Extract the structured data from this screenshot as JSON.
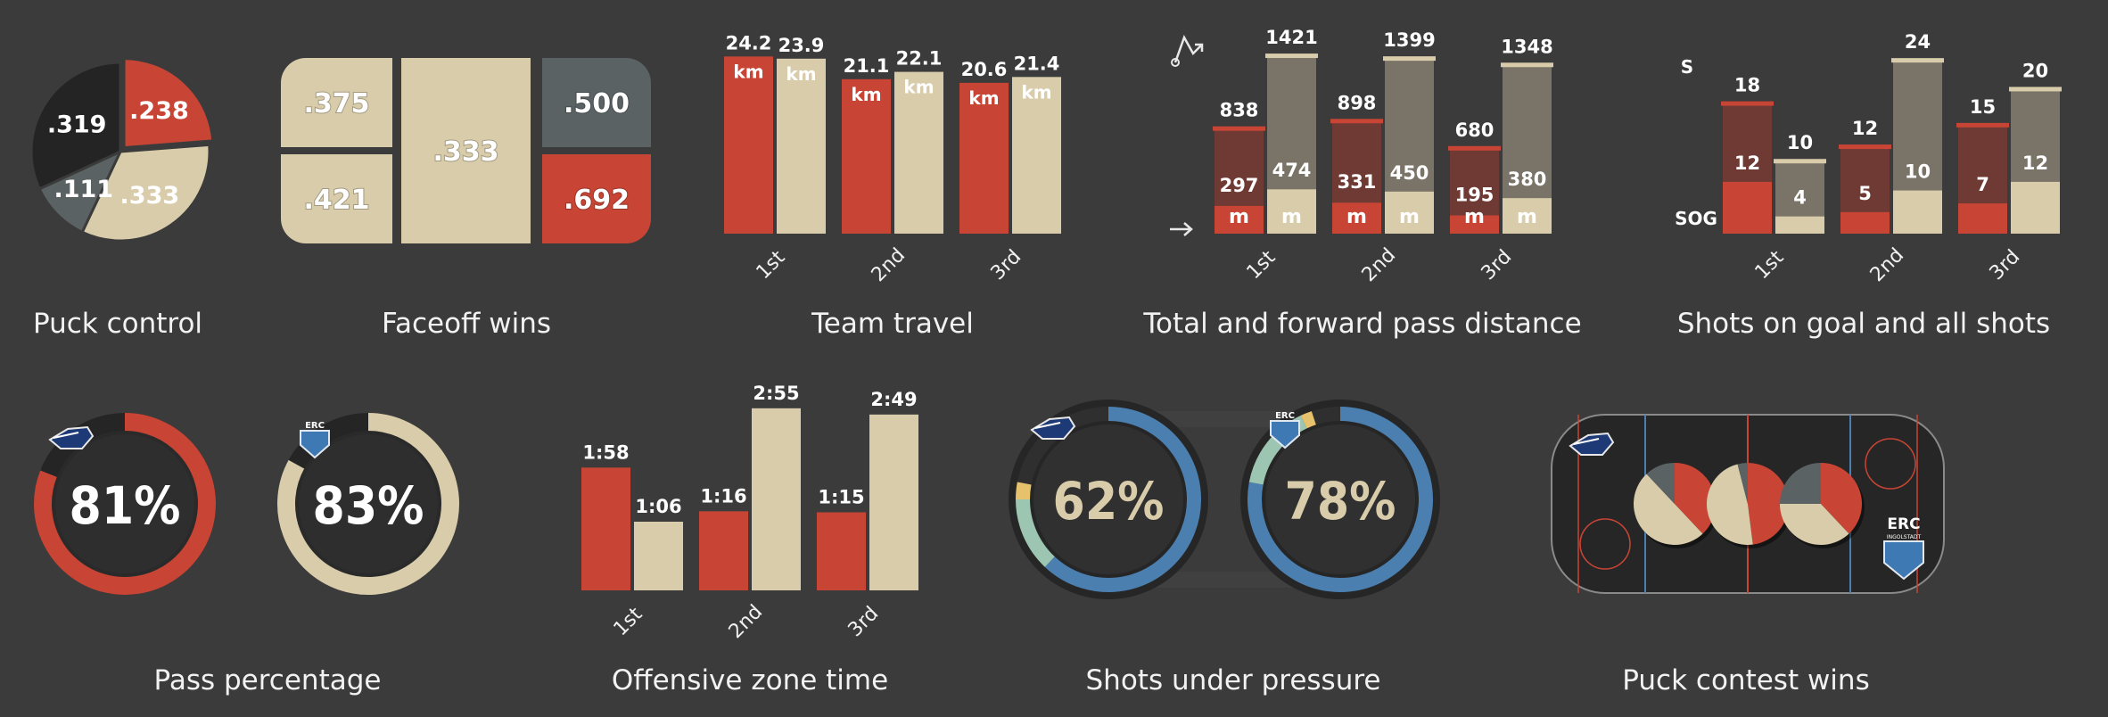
{
  "colors": {
    "red": "#c84535",
    "dark_red": "#6e3a33",
    "cream": "#d8ccaa",
    "dark": "#242424",
    "slate": "#5b6264",
    "taupe": "#7a7367",
    "blue": "#4a7fb0",
    "teal": "#9cc6b2",
    "yellow": "#e7c26d",
    "bg": "#3b3b3b"
  },
  "captions": {
    "puck_control": "Puck control",
    "faceoff": "Faceoff wins",
    "travel": "Team travel",
    "pass_distance": "Total and forward pass distance",
    "shots": "Shots on goal and all shots",
    "pass_pct": "Pass percentage",
    "ozone": "Offensive zone time",
    "pressure": "Shots under pressure",
    "contest": "Puck contest wins"
  },
  "chart_data": [
    {
      "id": "puck_control",
      "type": "pie",
      "slices": [
        {
          "label": ".238",
          "value": 0.238,
          "color": "red"
        },
        {
          "label": ".333",
          "value": 0.333,
          "color": "cream"
        },
        {
          "label": ".111",
          "value": 0.111,
          "color": "slate"
        },
        {
          "label": ".319",
          "value": 0.319,
          "color": "dark"
        }
      ]
    },
    {
      "id": "faceoff",
      "type": "treemap",
      "cells": [
        {
          "label": ".375",
          "value": 0.375,
          "color": "cream"
        },
        {
          "label": ".421",
          "value": 0.421,
          "color": "cream"
        },
        {
          "label": ".333",
          "value": 0.333,
          "color": "cream"
        },
        {
          "label": ".500",
          "value": 0.5,
          "color": "slate"
        },
        {
          "label": ".692",
          "value": 0.692,
          "color": "red"
        }
      ]
    },
    {
      "id": "travel",
      "type": "bar",
      "categories": [
        "1st",
        "2nd",
        "3rd"
      ],
      "unit": "km",
      "ylim": [
        0,
        26
      ],
      "series": [
        {
          "color": "red",
          "values": [
            24.2,
            21.1,
            20.6
          ],
          "labels": [
            "24.2",
            "21.1",
            "20.6"
          ]
        },
        {
          "color": "cream",
          "values": [
            23.9,
            22.1,
            21.4
          ],
          "labels": [
            "23.9",
            "22.1",
            "21.4"
          ]
        }
      ]
    },
    {
      "id": "pass_distance",
      "type": "bar",
      "categories": [
        "1st",
        "2nd",
        "3rd"
      ],
      "unit": "m",
      "ylim": [
        0,
        1500
      ],
      "series": [
        {
          "color": "red",
          "total": [
            838,
            898,
            680
          ],
          "forward": [
            297,
            331,
            195
          ]
        },
        {
          "color": "cream",
          "total": [
            1421,
            1399,
            1348
          ],
          "forward": [
            474,
            450,
            380
          ]
        }
      ]
    },
    {
      "id": "shots",
      "type": "bar",
      "categories": [
        "1st",
        "2nd",
        "3rd"
      ],
      "ylim": [
        0,
        26
      ],
      "labels_left": [
        "S",
        "SOG"
      ],
      "series": [
        {
          "color": "red",
          "shots": [
            18,
            12,
            15
          ],
          "on_goal": [
            12,
            5,
            7
          ]
        },
        {
          "color": "cream",
          "shots": [
            10,
            24,
            20
          ],
          "on_goal": [
            4,
            10,
            12
          ]
        }
      ]
    },
    {
      "id": "pass_pct",
      "type": "donut",
      "items": [
        {
          "label": "81%",
          "value": 81,
          "color": "red",
          "team": "Wild Wings"
        },
        {
          "label": "83%",
          "value": 83,
          "color": "cream",
          "team": "ERC"
        }
      ]
    },
    {
      "id": "ozone",
      "type": "bar",
      "categories": [
        "1st",
        "2nd",
        "3rd"
      ],
      "ylim": [
        0,
        180
      ],
      "series": [
        {
          "color": "red",
          "values": [
            118,
            76,
            75
          ],
          "labels": [
            "1:58",
            "1:16",
            "1:15"
          ]
        },
        {
          "color": "cream",
          "values": [
            66,
            175,
            169
          ],
          "labels": [
            "1:06",
            "2:55",
            "2:49"
          ]
        }
      ]
    },
    {
      "id": "pressure",
      "type": "donut",
      "items": [
        {
          "label": "62%",
          "value": 62,
          "team": "Wild Wings",
          "segments": [
            {
              "v": 62,
              "c": "blue"
            },
            {
              "v": 13,
              "c": "teal"
            },
            {
              "v": 3,
              "c": "yellow"
            }
          ]
        },
        {
          "label": "78%",
          "value": 78,
          "team": "ERC",
          "segments": [
            {
              "v": 78,
              "c": "blue"
            },
            {
              "v": 15,
              "c": "teal"
            },
            {
              "v": 2,
              "c": "yellow"
            }
          ]
        }
      ]
    },
    {
      "id": "contest",
      "type": "pie",
      "rinks": [
        [
          {
            "v": 0.38,
            "c": "red"
          },
          {
            "v": 0.5,
            "c": "cream"
          },
          {
            "v": 0.12,
            "c": "slate"
          }
        ],
        [
          {
            "v": 0.48,
            "c": "red"
          },
          {
            "v": 0.48,
            "c": "cream"
          },
          {
            "v": 0.04,
            "c": "slate"
          }
        ],
        [
          {
            "v": 0.38,
            "c": "red"
          },
          {
            "v": 0.37,
            "c": "cream"
          },
          {
            "v": 0.25,
            "c": "slate"
          }
        ]
      ],
      "logos": [
        "Wild Wings",
        "ERC INGOLSTADT"
      ]
    }
  ]
}
